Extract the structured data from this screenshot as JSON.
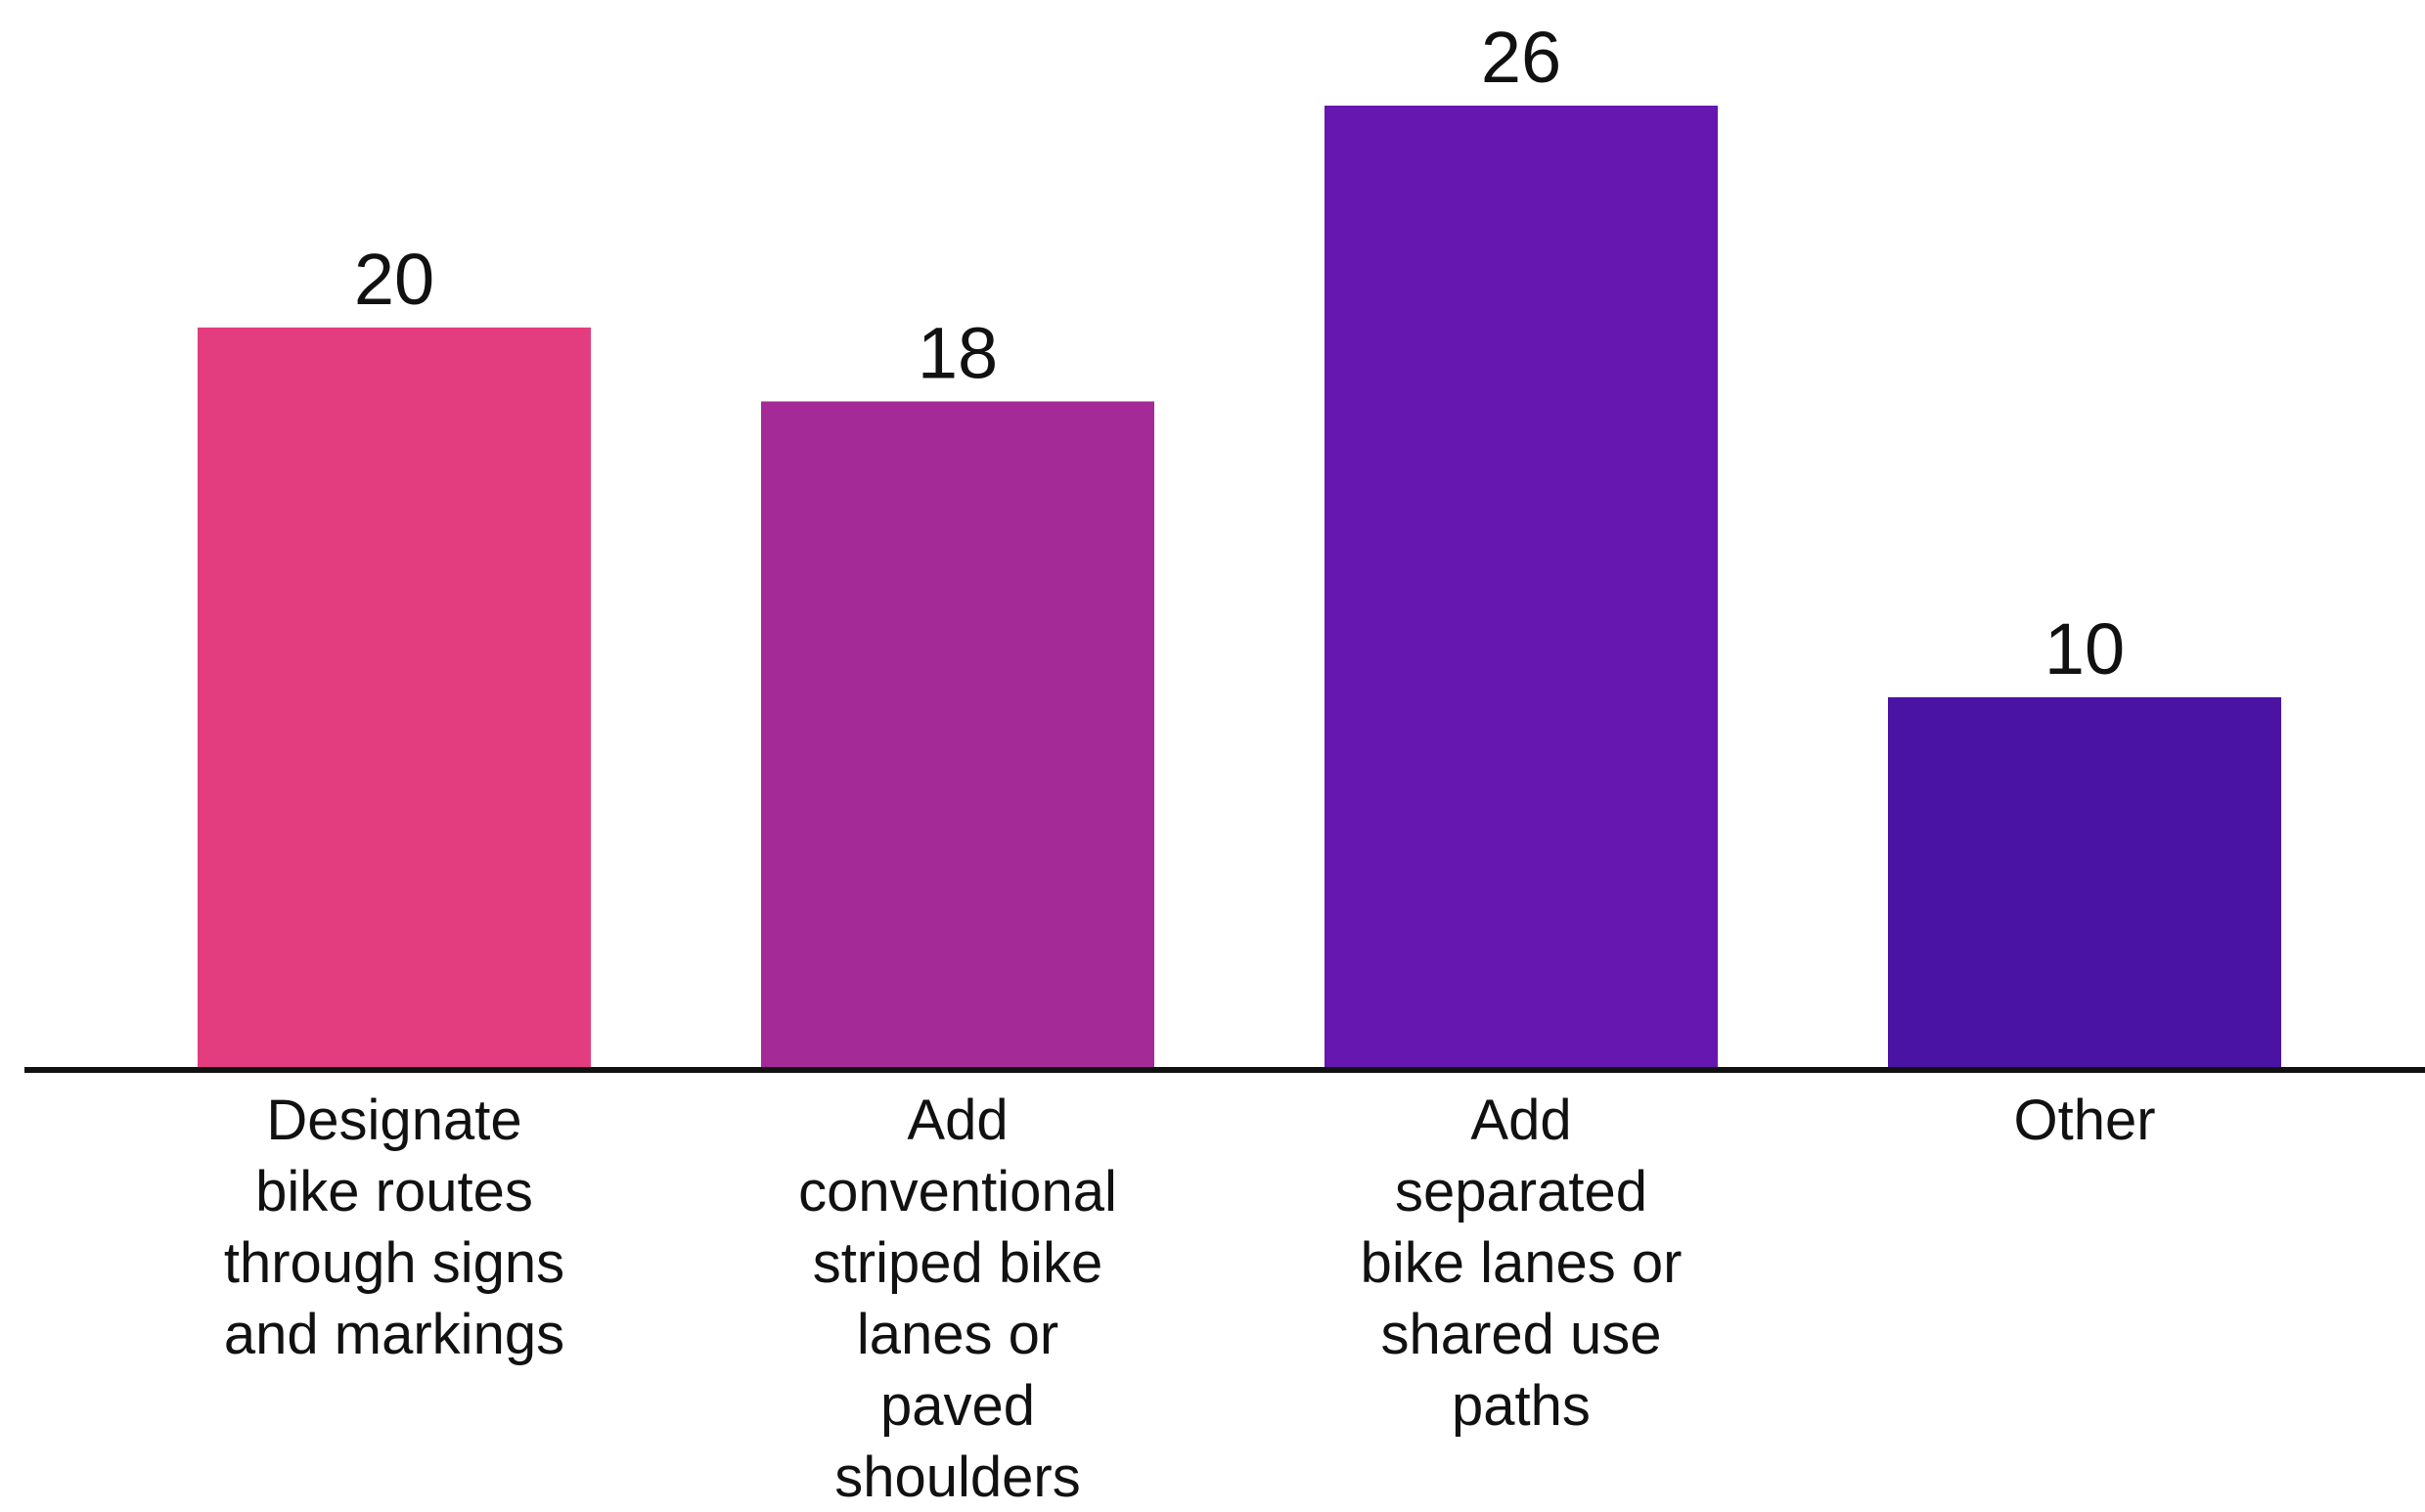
{
  "chart_data": {
    "type": "bar",
    "title": "",
    "xlabel": "",
    "ylabel": "",
    "categories": [
      [
        "Designate",
        "bike routes",
        "through signs",
        "and markings"
      ],
      [
        "Add",
        "conventional",
        "striped bike",
        "lanes or",
        "paved",
        "shoulders"
      ],
      [
        "Add",
        "separated",
        "bike lanes or",
        "shared use",
        "paths"
      ],
      [
        "Other"
      ]
    ],
    "values": [
      20,
      18,
      26,
      10
    ],
    "value_labels": [
      "20",
      "18",
      "26",
      "10"
    ],
    "ylim": [
      0,
      26
    ],
    "grid": false,
    "colors": [
      "#e33d7f",
      "#a42b97",
      "#6617b0",
      "#4b13a3"
    ]
  }
}
